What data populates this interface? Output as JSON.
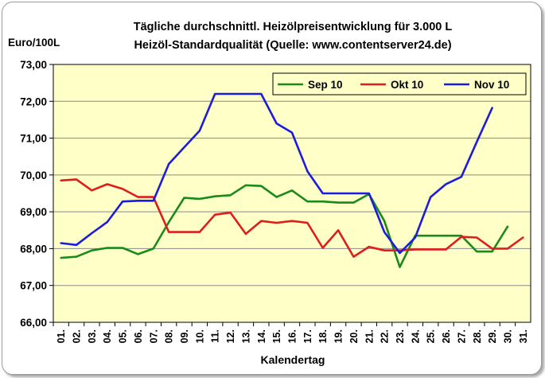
{
  "chart_data": {
    "type": "line",
    "title": "Tägliche durchschnittl. Heizölpreisentwicklung für 3.000 L",
    "subtitle": "Heizöl-Standardqualität (Quelle: www.contentserver24.de)",
    "ylabel": "Euro/100L",
    "xlabel": "Kalendertag",
    "ylim": [
      66,
      73
    ],
    "yticks": [
      "66,00",
      "67,00",
      "68,00",
      "69,00",
      "70,00",
      "71,00",
      "72,00",
      "73,00"
    ],
    "categories": [
      "01.",
      "02.",
      "03.",
      "04.",
      "05.",
      "06.",
      "07.",
      "08.",
      "09.",
      "10.",
      "11.",
      "12.",
      "13.",
      "14.",
      "15.",
      "16.",
      "17.",
      "18.",
      "19.",
      "20.",
      "21.",
      "22.",
      "23.",
      "24.",
      "25.",
      "26.",
      "27.",
      "28.",
      "29.",
      "30.",
      "31."
    ],
    "grid": true,
    "legend_position": "top-right",
    "series": [
      {
        "name": "Sep 10",
        "color": "#1a8a1a",
        "values": [
          67.75,
          67.78,
          67.95,
          68.02,
          68.02,
          67.85,
          68.0,
          68.72,
          69.38,
          69.35,
          69.42,
          69.45,
          69.72,
          69.7,
          69.4,
          69.58,
          69.28,
          69.28,
          69.25,
          69.25,
          69.48,
          68.75,
          67.5,
          68.35,
          68.35,
          68.35,
          68.35,
          67.92,
          67.92,
          68.6,
          null
        ]
      },
      {
        "name": "Okt 10",
        "color": "#e01c1c",
        "values": [
          69.85,
          69.88,
          69.58,
          69.75,
          69.62,
          69.4,
          69.4,
          68.45,
          68.45,
          68.45,
          68.92,
          68.98,
          68.4,
          68.75,
          68.7,
          68.75,
          68.7,
          68.02,
          68.5,
          67.78,
          68.05,
          67.95,
          67.95,
          67.98,
          67.98,
          67.98,
          68.32,
          68.3,
          68.0,
          68.0,
          68.3
        ]
      },
      {
        "name": "Nov 10",
        "color": "#1c1ce0",
        "values": [
          68.15,
          68.1,
          68.42,
          68.72,
          69.28,
          69.3,
          69.3,
          70.3,
          70.75,
          71.2,
          72.2,
          72.2,
          72.2,
          72.2,
          71.4,
          71.15,
          70.1,
          69.5,
          69.5,
          69.5,
          69.5,
          68.45,
          67.88,
          68.3,
          69.4,
          69.75,
          69.95,
          70.9,
          71.82,
          null,
          null
        ]
      }
    ],
    "colors": {
      "plot_background": "#ffffc8",
      "gridline": "#8a8a8a"
    }
  }
}
